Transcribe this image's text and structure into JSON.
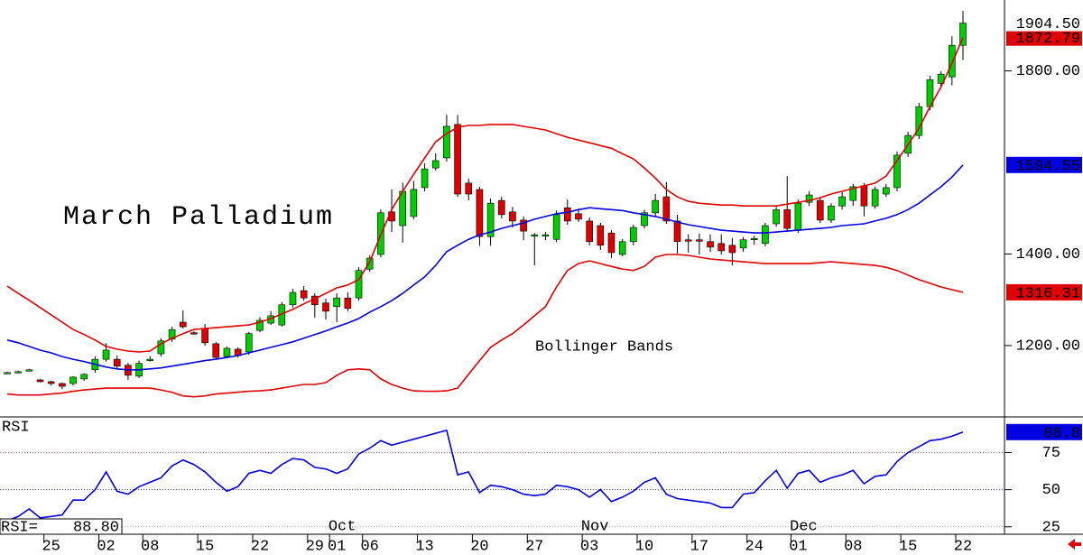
{
  "chart_data": [
    {
      "type": "candlestick",
      "title": "March Palladium",
      "annotation": "Bollinger Bands",
      "ylim": [
        1044,
        1955
      ],
      "yticks": [
        {
          "value": 1200,
          "label": "1200.00"
        },
        {
          "value": 1400,
          "label": "1400.00"
        },
        {
          "value": 1800,
          "label": "1800.00"
        }
      ],
      "grid": false,
      "series": [
        {
          "type": "candle",
          "up_color": "#00cc00",
          "down_color": "#dd0000",
          "last_value_label": "1904.50",
          "label_color": "#000000",
          "open": [
            1141,
            1143,
            1147,
            1125,
            1121,
            1117,
            1117,
            1127,
            1147,
            1170,
            1170,
            1157,
            1133,
            1167,
            1182,
            1214,
            1251,
            1228,
            1237,
            1204,
            1176,
            1192,
            1186,
            1233,
            1249,
            1245,
            1289,
            1320,
            1308,
            1293,
            1285,
            1304,
            1304,
            1367,
            1399,
            1492,
            1462,
            1482,
            1545,
            1588,
            1610,
            1683,
            1555,
            1541,
            1438,
            1517,
            1492,
            1474,
            1440,
            1440,
            1432,
            1501,
            1488,
            1472,
            1462,
            1446,
            1399,
            1427,
            1462,
            1490,
            1525,
            1472,
            1431,
            1431,
            1427,
            1423,
            1419,
            1413,
            1432,
            1423,
            1466,
            1497,
            1452,
            1513,
            1517,
            1474,
            1505,
            1517,
            1549,
            1505,
            1531,
            1545,
            1620,
            1659,
            1722,
            1773,
            1787,
            1856
          ],
          "high": [
            1143,
            1145,
            1149,
            1127,
            1123,
            1119,
            1133,
            1139,
            1176,
            1205,
            1178,
            1162,
            1167,
            1176,
            1216,
            1241,
            1277,
            1231,
            1247,
            1208,
            1198,
            1196,
            1230,
            1262,
            1275,
            1295,
            1324,
            1330,
            1314,
            1302,
            1314,
            1316,
            1371,
            1397,
            1497,
            1541,
            1556,
            1560,
            1598,
            1620,
            1704,
            1704,
            1565,
            1547,
            1521,
            1525,
            1503,
            1482,
            1446,
            1448,
            1495,
            1519,
            1499,
            1480,
            1468,
            1452,
            1433,
            1464,
            1497,
            1531,
            1557,
            1486,
            1443,
            1445,
            1443,
            1443,
            1435,
            1437,
            1440,
            1468,
            1503,
            1570,
            1519,
            1537,
            1523,
            1511,
            1535,
            1553,
            1555,
            1547,
            1553,
            1624,
            1667,
            1730,
            1789,
            1799,
            1876,
            1931
          ],
          "low": [
            1139,
            1141,
            1145,
            1119,
            1113,
            1105,
            1113,
            1123,
            1141,
            1165,
            1150,
            1125,
            1129,
            1165,
            1176,
            1208,
            1237,
            1224,
            1200,
            1170,
            1172,
            1174,
            1180,
            1229,
            1245,
            1241,
            1283,
            1298,
            1261,
            1257,
            1251,
            1275,
            1298,
            1361,
            1393,
            1448,
            1425,
            1476,
            1537,
            1582,
            1602,
            1525,
            1517,
            1418,
            1418,
            1478,
            1458,
            1430,
            1375,
            1430,
            1426,
            1464,
            1470,
            1419,
            1409,
            1391,
            1395,
            1419,
            1456,
            1482,
            1466,
            1401,
            1403,
            1399,
            1405,
            1399,
            1375,
            1405,
            1420,
            1417,
            1460,
            1450,
            1446,
            1505,
            1468,
            1468,
            1497,
            1505,
            1482,
            1499,
            1525,
            1537,
            1612,
            1651,
            1714,
            1763,
            1769,
            1824
          ],
          "close": [
            1141,
            1143,
            1147,
            1121,
            1117,
            1111,
            1131,
            1137,
            1170,
            1190,
            1155,
            1135,
            1161,
            1170,
            1210,
            1235,
            1241,
            1226,
            1206,
            1174,
            1194,
            1178,
            1226,
            1255,
            1265,
            1289,
            1316,
            1304,
            1289,
            1275,
            1304,
            1281,
            1364,
            1391,
            1490,
            1472,
            1537,
            1541,
            1586,
            1604,
            1679,
            1531,
            1531,
            1438,
            1511,
            1486,
            1472,
            1450,
            1442,
            1442,
            1486,
            1472,
            1476,
            1427,
            1419,
            1403,
            1427,
            1458,
            1490,
            1517,
            1472,
            1427,
            1429,
            1429,
            1415,
            1407,
            1403,
            1431,
            1434,
            1462,
            1497,
            1456,
            1511,
            1529,
            1474,
            1505,
            1525,
            1547,
            1505,
            1541,
            1545,
            1616,
            1659,
            1722,
            1781,
            1793,
            1856,
            1904.5
          ]
        },
        {
          "type": "band",
          "color": "#e00000",
          "last_value_label": "1872.79",
          "values": [
            1330,
            1314,
            1299,
            1283,
            1267,
            1251,
            1235,
            1224,
            1212,
            1198,
            1192,
            1188,
            1186,
            1188,
            1204,
            1216,
            1226,
            1235,
            1237,
            1239,
            1241,
            1243,
            1245,
            1251,
            1259,
            1269,
            1279,
            1291,
            1302,
            1314,
            1326,
            1332,
            1344,
            1383,
            1442,
            1497,
            1537,
            1574,
            1610,
            1645,
            1663,
            1677,
            1681,
            1681,
            1683,
            1683,
            1683,
            1679,
            1675,
            1671,
            1663,
            1655,
            1649,
            1643,
            1637,
            1631,
            1619,
            1608,
            1588,
            1566,
            1541,
            1525,
            1515,
            1511,
            1509,
            1507,
            1507,
            1505,
            1505,
            1505,
            1505,
            1509,
            1513,
            1517,
            1523,
            1531,
            1537,
            1543,
            1549,
            1555,
            1570,
            1604,
            1639,
            1675,
            1722,
            1765,
            1817,
            1872.79
          ]
        },
        {
          "type": "band",
          "color": "#0000e0",
          "last_value_label": "1594.55",
          "values": [
            1212,
            1206,
            1198,
            1190,
            1184,
            1176,
            1170,
            1165,
            1159,
            1153,
            1149,
            1147,
            1147,
            1149,
            1151,
            1155,
            1159,
            1163,
            1167,
            1170,
            1174,
            1178,
            1184,
            1190,
            1196,
            1202,
            1208,
            1216,
            1224,
            1232,
            1241,
            1249,
            1259,
            1273,
            1285,
            1298,
            1314,
            1332,
            1350,
            1375,
            1405,
            1419,
            1432,
            1442,
            1448,
            1456,
            1462,
            1468,
            1476,
            1482,
            1488,
            1491,
            1497,
            1501,
            1499,
            1497,
            1495,
            1490,
            1486,
            1482,
            1476,
            1470,
            1464,
            1460,
            1456,
            1452,
            1450,
            1448,
            1446,
            1446,
            1448,
            1450,
            1452,
            1454,
            1456,
            1458,
            1462,
            1464,
            1466,
            1472,
            1478,
            1486,
            1497,
            1511,
            1529,
            1547,
            1568,
            1594.55
          ]
        },
        {
          "type": "band",
          "color": "#e00000",
          "last_value_label": "1316.31",
          "values": [
            1094,
            1092,
            1092,
            1092,
            1094,
            1096,
            1100,
            1103,
            1105,
            1107,
            1107,
            1107,
            1107,
            1107,
            1103,
            1098,
            1090,
            1088,
            1090,
            1094,
            1096,
            1098,
            1100,
            1101,
            1103,
            1107,
            1111,
            1115,
            1115,
            1119,
            1135,
            1147,
            1149,
            1147,
            1127,
            1115,
            1107,
            1101,
            1100,
            1100,
            1101,
            1107,
            1137,
            1167,
            1196,
            1212,
            1226,
            1245,
            1265,
            1285,
            1328,
            1364,
            1379,
            1385,
            1379,
            1373,
            1367,
            1364,
            1373,
            1393,
            1399,
            1399,
            1397,
            1393,
            1389,
            1387,
            1385,
            1383,
            1381,
            1379,
            1379,
            1379,
            1379,
            1379,
            1381,
            1383,
            1381,
            1379,
            1377,
            1375,
            1371,
            1364,
            1354,
            1344,
            1336,
            1328,
            1322,
            1316.31
          ]
        }
      ]
    },
    {
      "type": "line",
      "title": "RSI",
      "ylim": [
        20,
        99
      ],
      "yticks": [
        25,
        50,
        75
      ],
      "grid": true,
      "grid_colors": [
        "#999999",
        "#3030d0",
        "#d06060"
      ],
      "categories": [
        null,
        null,
        null,
        null,
        "25",
        null,
        null,
        null,
        null,
        "02",
        null,
        null,
        null,
        "08",
        null,
        null,
        null,
        null,
        "15",
        null,
        null,
        null,
        null,
        "22",
        null,
        null,
        null,
        null,
        "29",
        null,
        "01",
        null,
        null,
        "06",
        null,
        null,
        null,
        null,
        "13",
        null,
        null,
        null,
        null,
        "20",
        null,
        null,
        null,
        null,
        "27",
        null,
        null,
        null,
        null,
        "03",
        null,
        null,
        null,
        null,
        "10",
        null,
        null,
        null,
        null,
        "17",
        null,
        null,
        null,
        null,
        "24",
        null,
        null,
        null,
        "01",
        null,
        null,
        null,
        null,
        "08",
        null,
        null,
        null,
        null,
        "15",
        null,
        null,
        null,
        null,
        "22"
      ],
      "months": [
        null,
        null,
        null,
        null,
        null,
        null,
        null,
        null,
        null,
        null,
        null,
        null,
        null,
        null,
        null,
        null,
        null,
        null,
        null,
        null,
        null,
        null,
        null,
        null,
        null,
        null,
        null,
        null,
        null,
        null,
        "Oct",
        null,
        null,
        null,
        null,
        null,
        null,
        null,
        null,
        null,
        null,
        null,
        null,
        null,
        null,
        null,
        null,
        null,
        null,
        null,
        null,
        null,
        null,
        "Nov",
        null,
        null,
        null,
        null,
        null,
        null,
        null,
        null,
        null,
        null,
        null,
        null,
        null,
        null,
        null,
        null,
        null,
        null,
        "Dec",
        null,
        null,
        null,
        null,
        null,
        null,
        null,
        null,
        null,
        null,
        null,
        null,
        null,
        null,
        null,
        null
      ],
      "series": [
        {
          "name": "RSI=",
          "color": "#0000e0",
          "last_value_label": "88.8",
          "readout_label": "88.80",
          "values": [
            29,
            32,
            37,
            31,
            32,
            33,
            43,
            43,
            50,
            62,
            49,
            47,
            52,
            55,
            58,
            66,
            70,
            67,
            62,
            55,
            49,
            52,
            61,
            63,
            61,
            67,
            71,
            70,
            65,
            64,
            61,
            64,
            74,
            78,
            83,
            80,
            82,
            84,
            86,
            88,
            90,
            60,
            62,
            48,
            53,
            52,
            50,
            47,
            46,
            47,
            53,
            52,
            50,
            45,
            50,
            42,
            45,
            49,
            55,
            58,
            47,
            44,
            43,
            42,
            41,
            38,
            38,
            47,
            48,
            56,
            63,
            51,
            61,
            63,
            55,
            58,
            60,
            63,
            54,
            59,
            60,
            69,
            75,
            79,
            83,
            84,
            86,
            88.8
          ]
        }
      ]
    }
  ]
}
